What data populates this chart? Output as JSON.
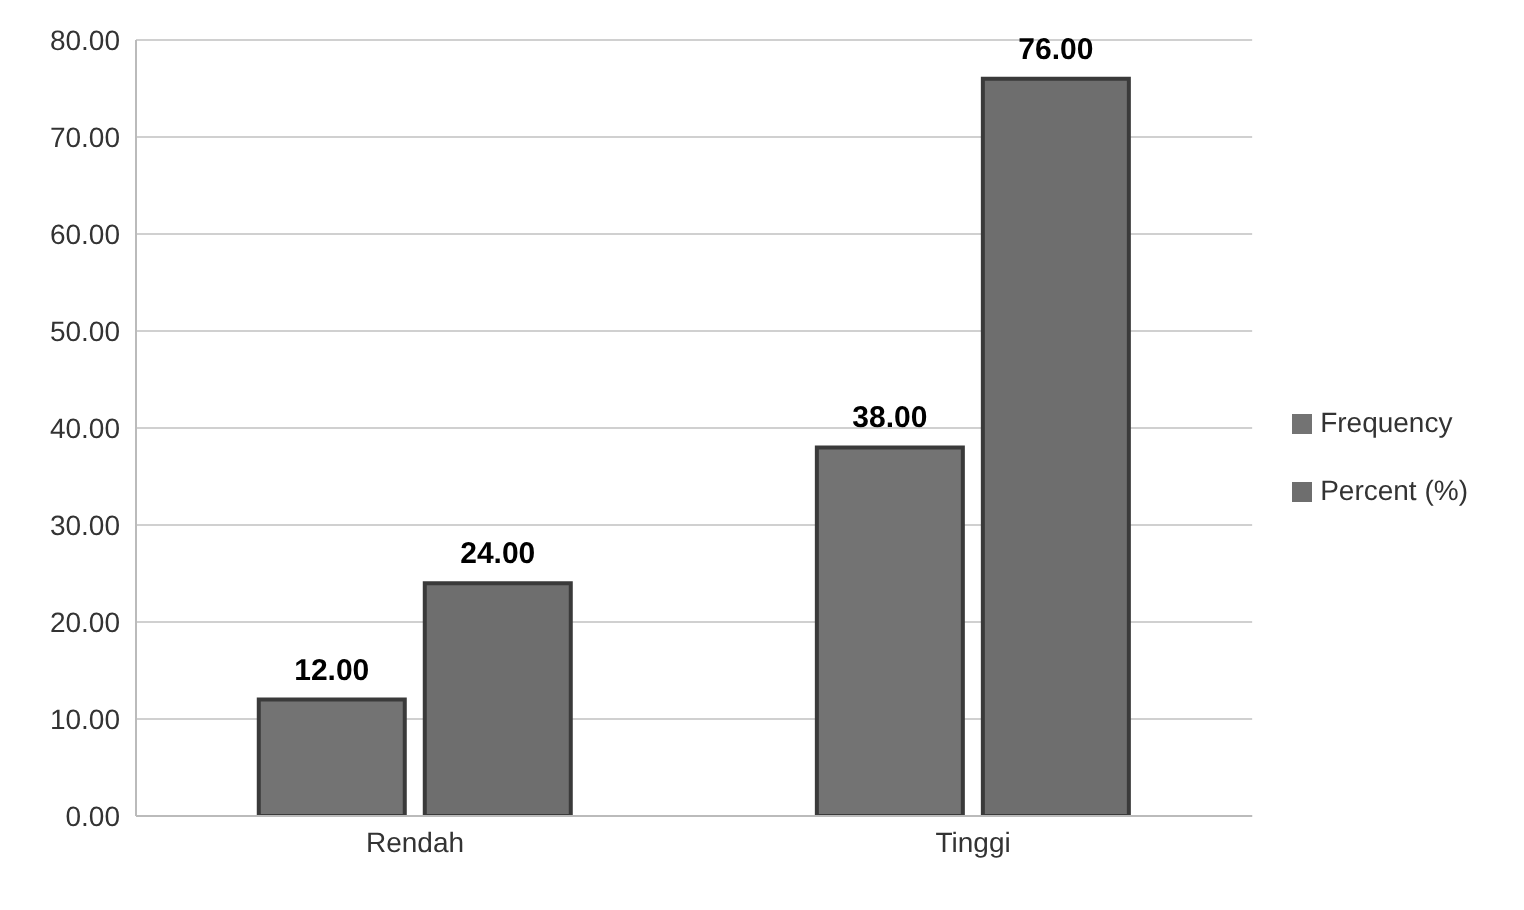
{
  "chart_data": {
    "type": "bar",
    "categories": [
      "Rendah",
      "Tinggi"
    ],
    "series": [
      {
        "name": "Frequency",
        "color": "#737373",
        "values": [
          12,
          38
        ],
        "value_labels": [
          "12.00",
          "38.00"
        ]
      },
      {
        "name": "Percent (%)",
        "color": "#6e6e6e",
        "values": [
          24,
          76
        ],
        "value_labels": [
          "24.00",
          "76.00"
        ]
      }
    ],
    "ylim": [
      0,
      80
    ],
    "yticks": [
      {
        "value": 0,
        "label": "0.00"
      },
      {
        "value": 10,
        "label": "10.00"
      },
      {
        "value": 20,
        "label": "20.00"
      },
      {
        "value": 30,
        "label": "30.00"
      },
      {
        "value": 40,
        "label": "40.00"
      },
      {
        "value": 50,
        "label": "50.00"
      },
      {
        "value": 60,
        "label": "60.00"
      },
      {
        "value": 70,
        "label": "70.00"
      },
      {
        "value": 80,
        "label": "80.00"
      }
    ],
    "grid": "y",
    "legend": "right"
  }
}
